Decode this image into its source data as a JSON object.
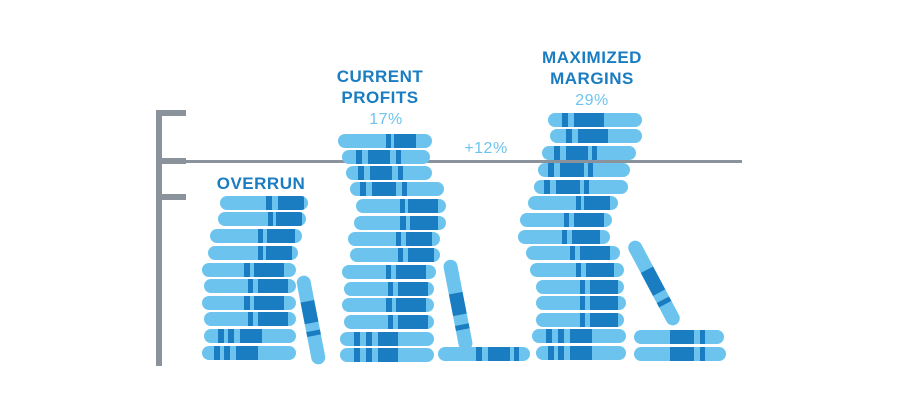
{
  "colors": {
    "light_blue": "#6cc4ee",
    "dark_blue": "#1a7cc1",
    "gray": "#8a929b",
    "stripe": "#2a8fd0"
  },
  "labels": {
    "overrun": "OVERRUN",
    "current_title": "CURRENT\nPROFITS",
    "current_pct": "17%",
    "gain": "+12%",
    "max_title": "MAXIMIZED\nMARGINS",
    "max_pct": "29%"
  },
  "stacks": [
    {
      "name": "overrun",
      "book_count": 9,
      "leaning_books": 1
    },
    {
      "name": "current-profits",
      "book_count": 13,
      "leaning_books": 2
    },
    {
      "name": "maximized-margins",
      "book_count": 16,
      "leaning_books": 2
    }
  ]
}
